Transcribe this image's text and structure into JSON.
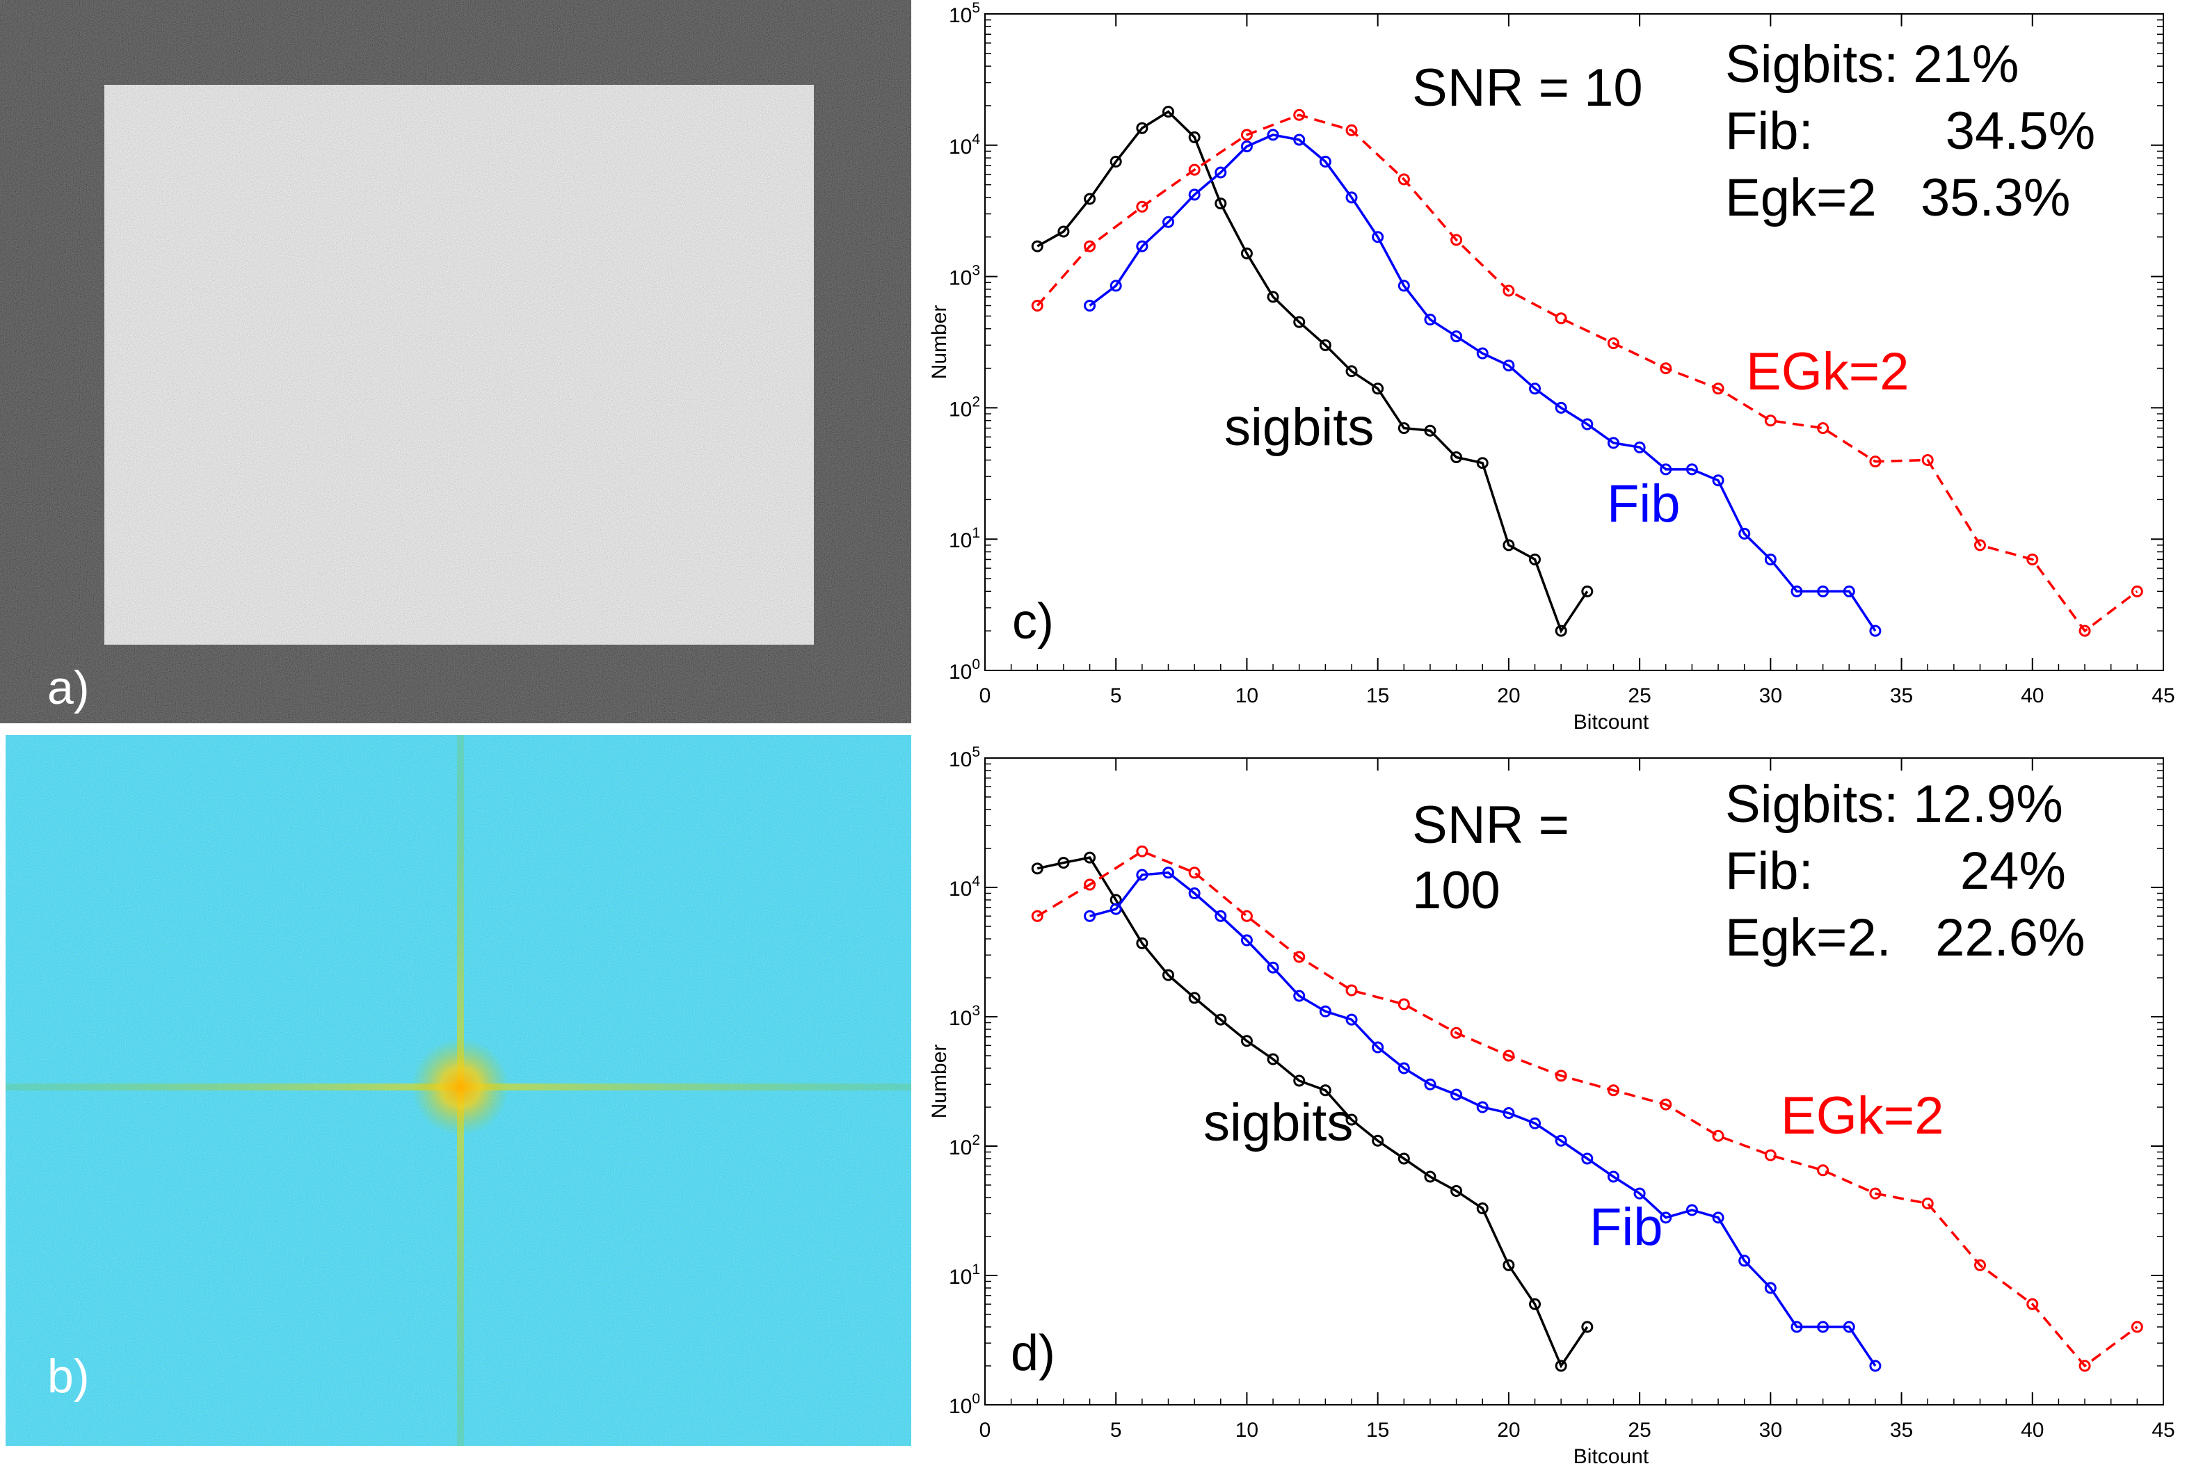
{
  "panels": {
    "a_label": "a)",
    "b_label": "b)"
  },
  "colors": {
    "sigbits": "#000000",
    "fib": "#0000ff",
    "egk": "#ff0000",
    "panel_a_bg": "#0b0b0b",
    "panel_a_rect": "#b9b9b9",
    "panel_b_bg": "#23a6cc",
    "panel_b_peak": "#ffb000"
  },
  "chart_data": [
    {
      "type": "line",
      "panel_label": "c)",
      "title": "",
      "xlabel": "Bitcount",
      "ylabel": "Number",
      "xlim": [
        0,
        45
      ],
      "ylim_log10": [
        0,
        5
      ],
      "yscale": "log",
      "x_ticks": [
        "0",
        "5",
        "10",
        "15",
        "20",
        "25",
        "30",
        "35",
        "40",
        "45"
      ],
      "y_tick_exponents": [
        "0",
        "1",
        "2",
        "3",
        "4",
        "5"
      ],
      "annotations": {
        "snr_line1": "SNR = 10",
        "snr_line2": "",
        "stat_lines": [
          "Sigbits: 21%",
          "Fib:         34.5%",
          "Egk=2   35.3%"
        ]
      },
      "series": [
        {
          "name": "sigbits",
          "label": "sigbits",
          "color_key": "sigbits",
          "dashed": false,
          "x": [
            2,
            3,
            4,
            5,
            6,
            7,
            8,
            9,
            10,
            11,
            12,
            13,
            14,
            15,
            16,
            17,
            18,
            19,
            20,
            21,
            22,
            23
          ],
          "y": [
            1700,
            2200,
            3900,
            7500,
            13500,
            18000,
            11500,
            3600,
            1500,
            700,
            450,
            300,
            190,
            140,
            70,
            67,
            42,
            38,
            9,
            7,
            2,
            4
          ]
        },
        {
          "name": "fib",
          "label": "Fib",
          "color_key": "fib",
          "dashed": false,
          "x": [
            4,
            5,
            6,
            7,
            8,
            9,
            10,
            11,
            12,
            13,
            14,
            15,
            16,
            17,
            18,
            19,
            20,
            21,
            22,
            23,
            24,
            25,
            26,
            27,
            28,
            29,
            30,
            31,
            32,
            33,
            34
          ],
          "y": [
            600,
            850,
            1700,
            2600,
            4200,
            6200,
            9800,
            12000,
            11000,
            7500,
            4000,
            2000,
            850,
            470,
            350,
            260,
            210,
            140,
            100,
            75,
            54,
            50,
            34,
            34,
            28,
            11,
            7,
            4,
            4,
            4,
            2
          ]
        },
        {
          "name": "egk",
          "label": "EGk=2",
          "color_key": "egk",
          "dashed": true,
          "x": [
            2,
            4,
            6,
            8,
            10,
            12,
            14,
            16,
            18,
            20,
            22,
            24,
            26,
            28,
            30,
            32,
            34,
            36,
            38,
            40,
            42,
            44
          ],
          "y": [
            600,
            1700,
            3400,
            6500,
            12000,
            17000,
            13000,
            5500,
            1900,
            780,
            480,
            310,
            200,
            140,
            80,
            70,
            39,
            40,
            9,
            7,
            2,
            4
          ]
        }
      ]
    },
    {
      "type": "line",
      "panel_label": "d)",
      "title": "",
      "xlabel": "Bitcount",
      "ylabel": "Number",
      "xlim": [
        0,
        45
      ],
      "ylim_log10": [
        0,
        5
      ],
      "yscale": "log",
      "x_ticks": [
        "0",
        "5",
        "10",
        "15",
        "20",
        "25",
        "30",
        "35",
        "40",
        "45"
      ],
      "y_tick_exponents": [
        "0",
        "1",
        "2",
        "3",
        "4",
        "5"
      ],
      "annotations": {
        "snr_line1": "SNR =",
        "snr_line2": "100",
        "stat_lines": [
          "Sigbits: 12.9%",
          "Fib:          24%",
          "Egk=2.   22.6%"
        ]
      },
      "series": [
        {
          "name": "sigbits",
          "label": "sigbits",
          "color_key": "sigbits",
          "dashed": false,
          "x": [
            2,
            3,
            4,
            5,
            6,
            7,
            8,
            9,
            10,
            11,
            12,
            13,
            14,
            15,
            16,
            17,
            18,
            19,
            20,
            21,
            22,
            23
          ],
          "y": [
            14000,
            15500,
            17000,
            8000,
            3700,
            2100,
            1400,
            950,
            650,
            470,
            320,
            270,
            160,
            110,
            80,
            58,
            45,
            33,
            12,
            6,
            2,
            4
          ]
        },
        {
          "name": "fib",
          "label": "Fib",
          "color_key": "fib",
          "dashed": false,
          "x": [
            4,
            5,
            6,
            7,
            8,
            9,
            10,
            11,
            12,
            13,
            14,
            15,
            16,
            17,
            18,
            19,
            20,
            21,
            22,
            23,
            24,
            25,
            26,
            27,
            28,
            29,
            30,
            31,
            32,
            33,
            34
          ],
          "y": [
            6000,
            6800,
            12500,
            13000,
            9000,
            6000,
            3900,
            2400,
            1450,
            1100,
            950,
            580,
            400,
            300,
            250,
            200,
            180,
            150,
            110,
            80,
            58,
            43,
            28,
            32,
            28,
            13,
            8,
            4,
            4,
            4,
            2
          ]
        },
        {
          "name": "egk",
          "label": "EGk=2",
          "color_key": "egk",
          "dashed": true,
          "x": [
            2,
            4,
            6,
            8,
            10,
            12,
            14,
            16,
            18,
            20,
            22,
            24,
            26,
            28,
            30,
            32,
            34,
            36,
            38,
            40,
            42,
            44
          ],
          "y": [
            6000,
            10500,
            19000,
            13000,
            6000,
            2900,
            1600,
            1250,
            750,
            500,
            350,
            270,
            210,
            120,
            85,
            65,
            43,
            36,
            12,
            6,
            2,
            4
          ]
        }
      ]
    }
  ]
}
